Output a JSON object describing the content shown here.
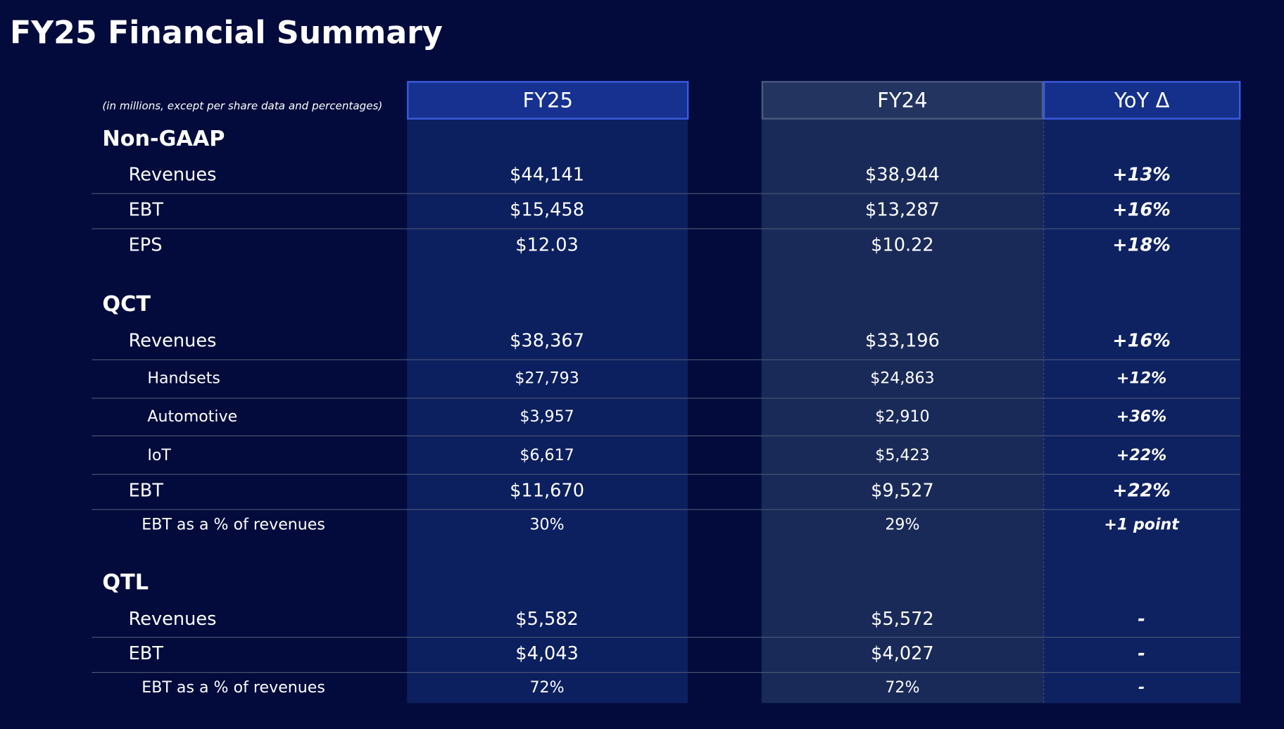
{
  "header": {
    "title": "FY25 Financial Summary",
    "note": "(in millions, except per share data and percentages)"
  },
  "columns": [
    "FY25",
    "FY24",
    "YoY Δ"
  ],
  "sections": [
    {
      "name": "Non-GAAP",
      "rows": [
        {
          "label": "Revenues",
          "level": 1,
          "cells": [
            "$44,141",
            "$38,944",
            "+13%"
          ]
        },
        {
          "label": "EBT",
          "level": 1,
          "cells": [
            "$15,458",
            "$13,287",
            "+16%"
          ]
        },
        {
          "label": "EPS",
          "level": 1,
          "cells": [
            "$12.03",
            "$10.22",
            "+18%"
          ]
        }
      ]
    },
    {
      "name": "QCT",
      "rows": [
        {
          "label": "Revenues",
          "level": 1,
          "cells": [
            "$38,367",
            "$33,196",
            "+16%"
          ]
        },
        {
          "label": "Handsets",
          "level": 2,
          "cells": [
            "$27,793",
            "$24,863",
            "+12%"
          ]
        },
        {
          "label": "Automotive",
          "level": 2,
          "cells": [
            "$3,957",
            "$2,910",
            "+36%"
          ]
        },
        {
          "label": "IoT",
          "level": 2,
          "cells": [
            "$6,617",
            "$5,423",
            "+22%"
          ]
        },
        {
          "label": "EBT",
          "level": 1,
          "cells": [
            "$11,670",
            "$9,527",
            "+22%"
          ]
        },
        {
          "label": "EBT as a % of revenues",
          "level": 3,
          "cells": [
            "30%",
            "29%",
            "+1 point"
          ]
        }
      ]
    },
    {
      "name": "QTL",
      "rows": [
        {
          "label": "Revenues",
          "level": 1,
          "cells": [
            "$5,582",
            "$5,572",
            "-"
          ]
        },
        {
          "label": "EBT",
          "level": 1,
          "cells": [
            "$4,043",
            "$4,027",
            "-"
          ]
        },
        {
          "label": "EBT as a % of revenues",
          "level": 3,
          "cells": [
            "72%",
            "72%",
            "-"
          ]
        }
      ]
    }
  ]
}
